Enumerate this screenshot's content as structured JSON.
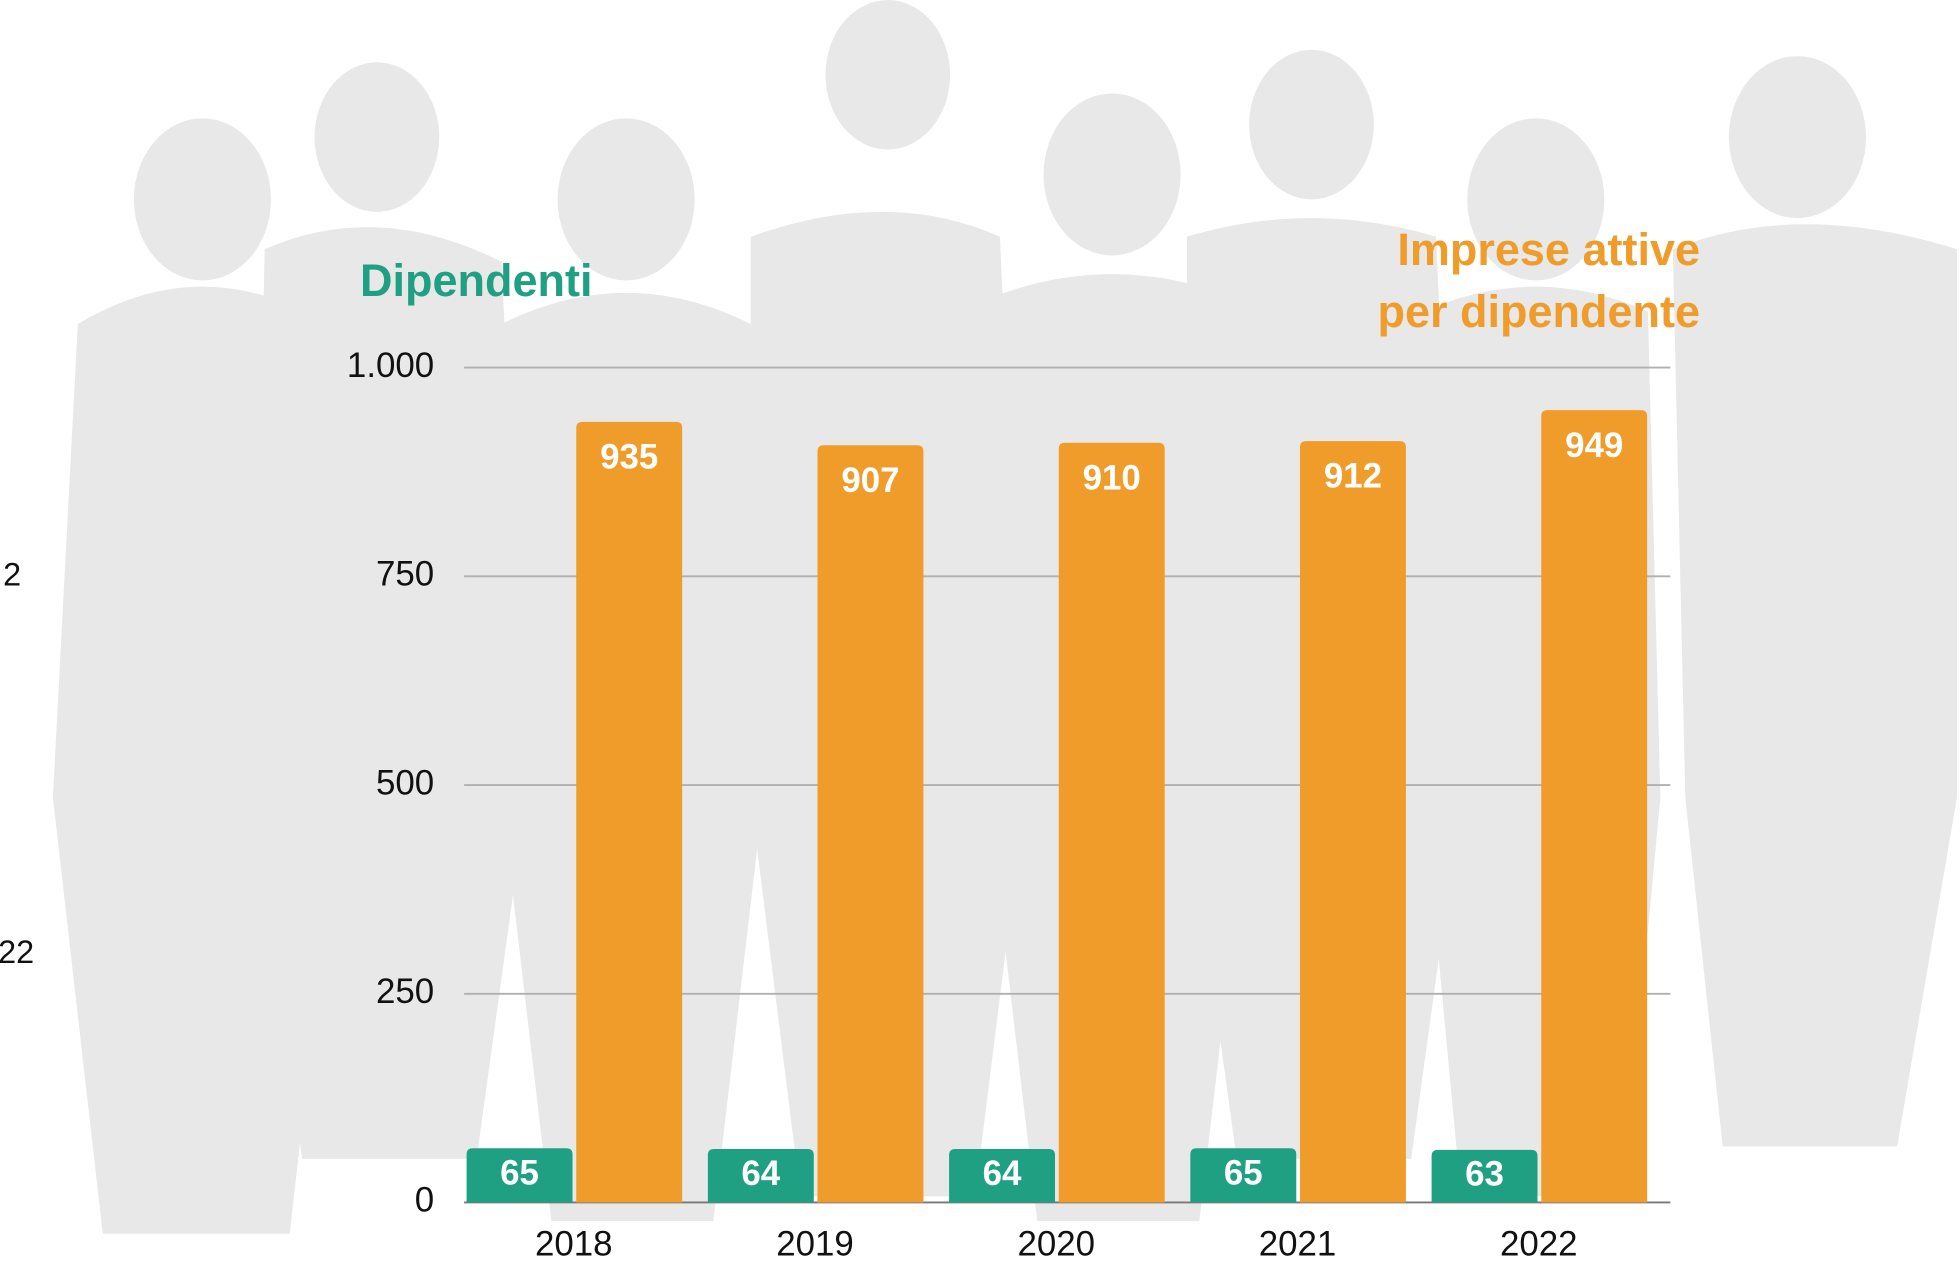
{
  "chart_data": {
    "type": "bar",
    "categories": [
      "2018",
      "2019",
      "2020",
      "2021",
      "2022"
    ],
    "series": [
      {
        "name": "Dipendenti",
        "color": "#1fa082",
        "values": [
          65,
          64,
          64,
          65,
          63
        ]
      },
      {
        "name": "Imprese attive per dipendente",
        "color": "#f09c2a",
        "values": [
          935,
          907,
          910,
          912,
          949
        ]
      }
    ],
    "ylim": [
      0,
      1000
    ],
    "yticks": [
      0,
      250,
      500,
      750,
      {
        "value": 1000,
        "label": "1.000"
      }
    ],
    "grid": true
  },
  "cropped_labels": [
    "2",
    "22"
  ]
}
